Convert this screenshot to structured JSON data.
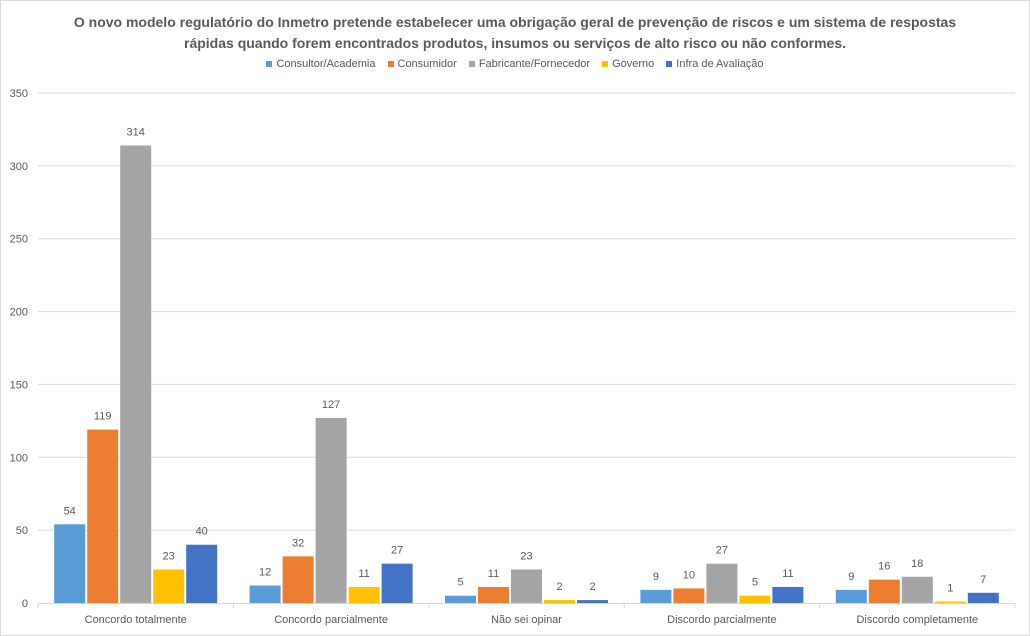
{
  "chart_data": {
    "type": "bar",
    "title": "O novo modelo regulatório do Inmetro pretende estabelecer uma obrigação geral de prevenção de riscos e um sistema de respostas rápidas quando forem encontrados produtos, insumos ou serviços de alto risco ou não conformes.",
    "title_lines": [
      "O novo modelo regulatório do Inmetro pretende estabelecer uma obrigação geral de prevenção de riscos e um sistema de respostas",
      "rápidas quando forem encontrados produtos, insumos ou serviços de alto risco ou não conformes."
    ],
    "categories": [
      "Concordo totalmente",
      "Concordo parcialmente",
      "Não sei opinar",
      "Discordo parcialmente",
      "Discordo completamente"
    ],
    "series": [
      {
        "name": "Consultor/Academia",
        "color": "#5b9bd5",
        "values": [
          54,
          12,
          5,
          9,
          9
        ]
      },
      {
        "name": "Consumidor",
        "color": "#ed7d31",
        "values": [
          119,
          32,
          11,
          10,
          16
        ]
      },
      {
        "name": "Fabricante/Fornecedor",
        "color": "#a5a5a5",
        "values": [
          314,
          127,
          23,
          27,
          18
        ]
      },
      {
        "name": "Governo",
        "color": "#ffc000",
        "values": [
          23,
          11,
          2,
          5,
          1
        ]
      },
      {
        "name": "Infra de Avaliação",
        "color": "#4472c4",
        "values": [
          40,
          27,
          2,
          11,
          7
        ]
      }
    ],
    "ylim": [
      0,
      350
    ],
    "yticks": [
      0,
      50,
      100,
      150,
      200,
      250,
      300,
      350
    ],
    "xlabel": "",
    "ylabel": "",
    "grid": true,
    "legend": "top"
  }
}
